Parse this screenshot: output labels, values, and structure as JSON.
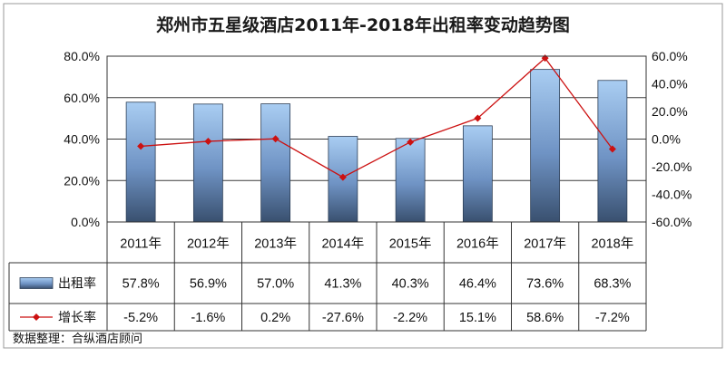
{
  "chart_data": {
    "type": "bar",
    "title": "郑州市五星级酒店2011年-2018年出租率变动趋势图",
    "categories": [
      "2011年",
      "2012年",
      "2013年",
      "2014年",
      "2015年",
      "2016年",
      "2017年",
      "2018年"
    ],
    "series": [
      {
        "name": "出租率",
        "type": "bar",
        "axis": "left",
        "values": [
          57.8,
          56.9,
          57.0,
          41.3,
          40.3,
          46.4,
          73.6,
          68.3
        ],
        "labels": [
          "57.8%",
          "56.9%",
          "57.0%",
          "41.3%",
          "40.3%",
          "46.4%",
          "73.6%",
          "68.3%"
        ],
        "color": "#7ea7d8"
      },
      {
        "name": "增长率",
        "type": "line",
        "axis": "right",
        "values": [
          -5.2,
          -1.6,
          0.2,
          -27.6,
          -2.2,
          15.1,
          58.6,
          -7.2
        ],
        "labels": [
          "-5.2%",
          "-1.6%",
          "0.2%",
          "-27.6%",
          "-2.2%",
          "15.1%",
          "58.6%",
          "-7.2%"
        ],
        "color": "#cc1111"
      }
    ],
    "y_left": {
      "range": [
        0,
        80
      ],
      "ticks": [
        0,
        20,
        40,
        60,
        80
      ],
      "tick_labels": [
        "0.0%",
        "20.0%",
        "40.0%",
        "60.0%",
        "80.0%"
      ]
    },
    "y_right": {
      "range": [
        -60,
        60
      ],
      "ticks": [
        -60,
        -40,
        -20,
        0,
        20,
        40,
        60
      ],
      "tick_labels": [
        "-60.0%",
        "-40.0%",
        "-20.0%",
        "0.0%",
        "20.0%",
        "40.0%",
        "60.0%"
      ]
    },
    "grid": "horizontal",
    "legend": "data-table",
    "source_note": "数据整理：合纵酒店顾问"
  }
}
